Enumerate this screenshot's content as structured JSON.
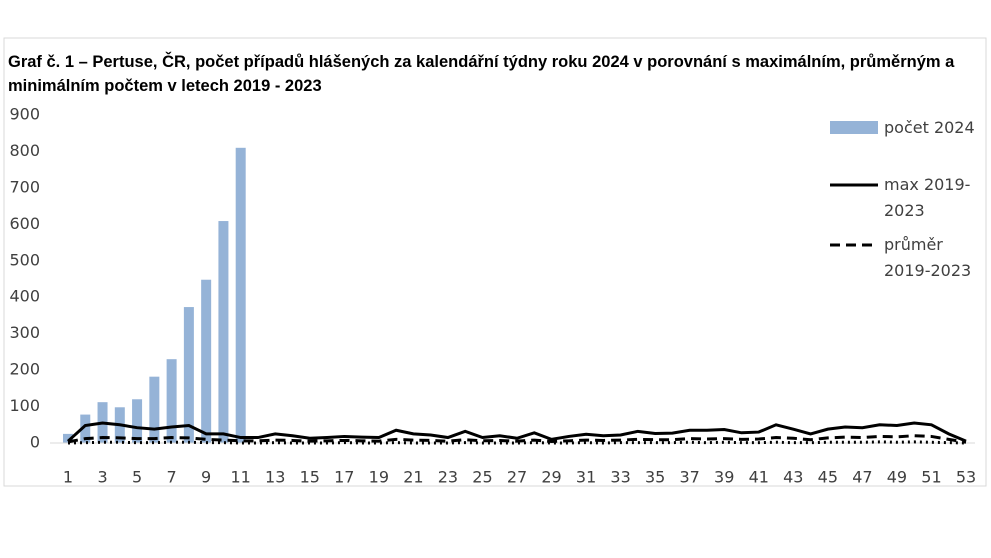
{
  "chart_data": {
    "type": "bar-line",
    "title": "Graf č. 1 – Pertuse, ČR, počet případů hlášených za kalendářní týdny roku 2024 v porovnání s maximálním, průměrným a minimálním počtem v letech 2019 - 2023",
    "categories": [
      1,
      null,
      3,
      null,
      5,
      null,
      7,
      null,
      9,
      null,
      11,
      null,
      13,
      null,
      15,
      null,
      17,
      null,
      19,
      null,
      21,
      null,
      23,
      null,
      25,
      null,
      27,
      null,
      29,
      null,
      31,
      null,
      33,
      null,
      35,
      null,
      37,
      null,
      39,
      null,
      41,
      null,
      43,
      null,
      45,
      null,
      47,
      null,
      49,
      null,
      51,
      null,
      53
    ],
    "series": [
      {
        "name": "počet 2024",
        "type": "bar",
        "color": "#95b3d7",
        "values": [
          25,
          78,
          112,
          98,
          120,
          182,
          230,
          373,
          448,
          609,
          810,
          null,
          null,
          null,
          null,
          null,
          null,
          null,
          null,
          null,
          null,
          null,
          null,
          null,
          null,
          null,
          null,
          null,
          null,
          null,
          null,
          null,
          null,
          null,
          null,
          null,
          null,
          null,
          null,
          null,
          null,
          null,
          null,
          null,
          null,
          null,
          null,
          null,
          null,
          null,
          null,
          null,
          null
        ]
      },
      {
        "name": "max 2019-2023",
        "type": "line",
        "dash": "solid",
        "color": "#000000",
        "values": [
          5,
          48,
          55,
          50,
          42,
          38,
          44,
          48,
          25,
          25,
          15,
          15,
          25,
          20,
          13,
          15,
          18,
          16,
          15,
          35,
          25,
          22,
          15,
          32,
          15,
          20,
          13,
          28,
          10,
          18,
          24,
          20,
          22,
          32,
          26,
          27,
          35,
          35,
          37,
          28,
          30,
          50,
          38,
          25,
          38,
          44,
          42,
          50,
          48,
          55,
          50,
          25,
          5
        ]
      },
      {
        "name": "průměr 2019-2023",
        "type": "line",
        "dash": "dashed",
        "color": "#000000",
        "values": [
          3,
          12,
          15,
          14,
          12,
          12,
          15,
          14,
          10,
          8,
          6,
          6,
          8,
          7,
          5,
          6,
          7,
          6,
          5,
          10,
          8,
          7,
          5,
          9,
          6,
          7,
          5,
          8,
          4,
          6,
          8,
          7,
          8,
          10,
          9,
          9,
          12,
          11,
          12,
          10,
          11,
          15,
          13,
          9,
          14,
          16,
          15,
          18,
          17,
          20,
          18,
          10,
          2
        ]
      },
      {
        "type": "line",
        "dash": "dotted",
        "color": "#000000",
        "values": [
          0,
          1,
          2,
          2,
          1,
          1,
          2,
          2,
          1,
          1,
          0,
          0,
          1,
          0,
          0,
          0,
          1,
          0,
          0,
          1,
          0,
          0,
          0,
          1,
          0,
          0,
          0,
          1,
          0,
          0,
          1,
          0,
          1,
          1,
          1,
          1,
          2,
          1,
          2,
          1,
          1,
          2,
          1,
          1,
          2,
          2,
          2,
          3,
          2,
          3,
          2,
          1,
          0
        ]
      }
    ],
    "ylim": [
      0,
      900
    ],
    "yticks": [
      0,
      100,
      200,
      300,
      400,
      500,
      600,
      700,
      800,
      900
    ],
    "grid": false,
    "legend": "right"
  }
}
